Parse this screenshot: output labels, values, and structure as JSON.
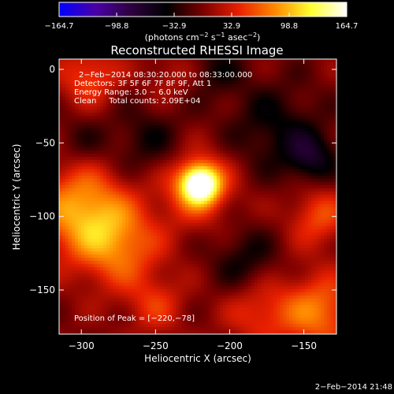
{
  "chart_data": {
    "type": "heatmap",
    "title": "Reconstructed RHESSI Image",
    "xlabel": "Heliocentric X (arcsec)",
    "ylabel": "Heliocentric Y (arcsec)",
    "xlim": [
      -315,
      -128
    ],
    "ylim": [
      -180,
      7
    ],
    "x_ticks": [
      -300,
      -250,
      -200,
      -150
    ],
    "y_ticks": [
      0,
      -50,
      -100,
      -150
    ],
    "x_tick_labels": [
      "−300",
      "−250",
      "−200",
      "−150"
    ],
    "y_tick_labels": [
      "0",
      "−50",
      "−100",
      "−150"
    ],
    "colorbar": {
      "range": [
        -164.7,
        164.7
      ],
      "ticks": [
        -164.7,
        -98.8,
        -32.9,
        32.9,
        98.8,
        164.7
      ],
      "tick_labels": [
        "−164.7",
        "−98.8",
        "−32.9",
        "32.9",
        "98.8",
        "164.7"
      ],
      "units_text": "(photons cm",
      "units_sup1": "−2",
      "units_mid": " s",
      "units_sup2": "−1",
      "units_end": " asec",
      "units_sup3": "−2",
      "units_close": ")",
      "colors": [
        "#0000ff",
        "#4a00a8",
        "#2e0040",
        "#000000",
        "#7a0000",
        "#e82000",
        "#ff8800",
        "#ffff30",
        "#ffffff"
      ]
    },
    "annotations": [
      "2−Feb−2014 08:30:20.000 to 08:33:00.000",
      "Detectors: 3F 5F 6F 7F 8F 9F, Att 1",
      "Energy Range: 3.0 − 6.0 keV",
      "Clean     Total counts: 2.09E+04"
    ],
    "peak_label": "Position of Peak = [−220,−78]",
    "peak": {
      "x": -220,
      "y": -78,
      "value": 164.7
    },
    "sources": [
      {
        "x": -220,
        "y": -78,
        "value": 164.7,
        "sigma": 9
      },
      {
        "x": -222,
        "y": -80,
        "value": 60,
        "sigma": 18
      },
      {
        "x": -300,
        "y": -95,
        "value": 90,
        "sigma": 22
      },
      {
        "x": -275,
        "y": -120,
        "value": 70,
        "sigma": 20
      },
      {
        "x": -295,
        "y": -5,
        "value": 55,
        "sigma": 14
      },
      {
        "x": -140,
        "y": -165,
        "value": 75,
        "sigma": 18
      },
      {
        "x": -180,
        "y": -165,
        "value": 45,
        "sigma": 16
      },
      {
        "x": -250,
        "y": -160,
        "value": 40,
        "sigma": 14
      },
      {
        "x": -140,
        "y": -100,
        "value": 55,
        "sigma": 14
      },
      {
        "x": -240,
        "y": -5,
        "value": 25,
        "sigma": 12
      },
      {
        "x": -255,
        "y": -50,
        "value": -35,
        "sigma": 18
      },
      {
        "x": -170,
        "y": -40,
        "value": -40,
        "sigma": 22
      },
      {
        "x": -145,
        "y": -60,
        "value": -55,
        "sigma": 12
      },
      {
        "x": -190,
        "y": -130,
        "value": -38,
        "sigma": 16
      },
      {
        "x": -300,
        "y": -50,
        "value": -25,
        "sigma": 14
      },
      {
        "x": -210,
        "y": 0,
        "value": -30,
        "sigma": 14
      }
    ]
  },
  "footer": {
    "timestamp": "2−Feb−2014 21:48"
  }
}
